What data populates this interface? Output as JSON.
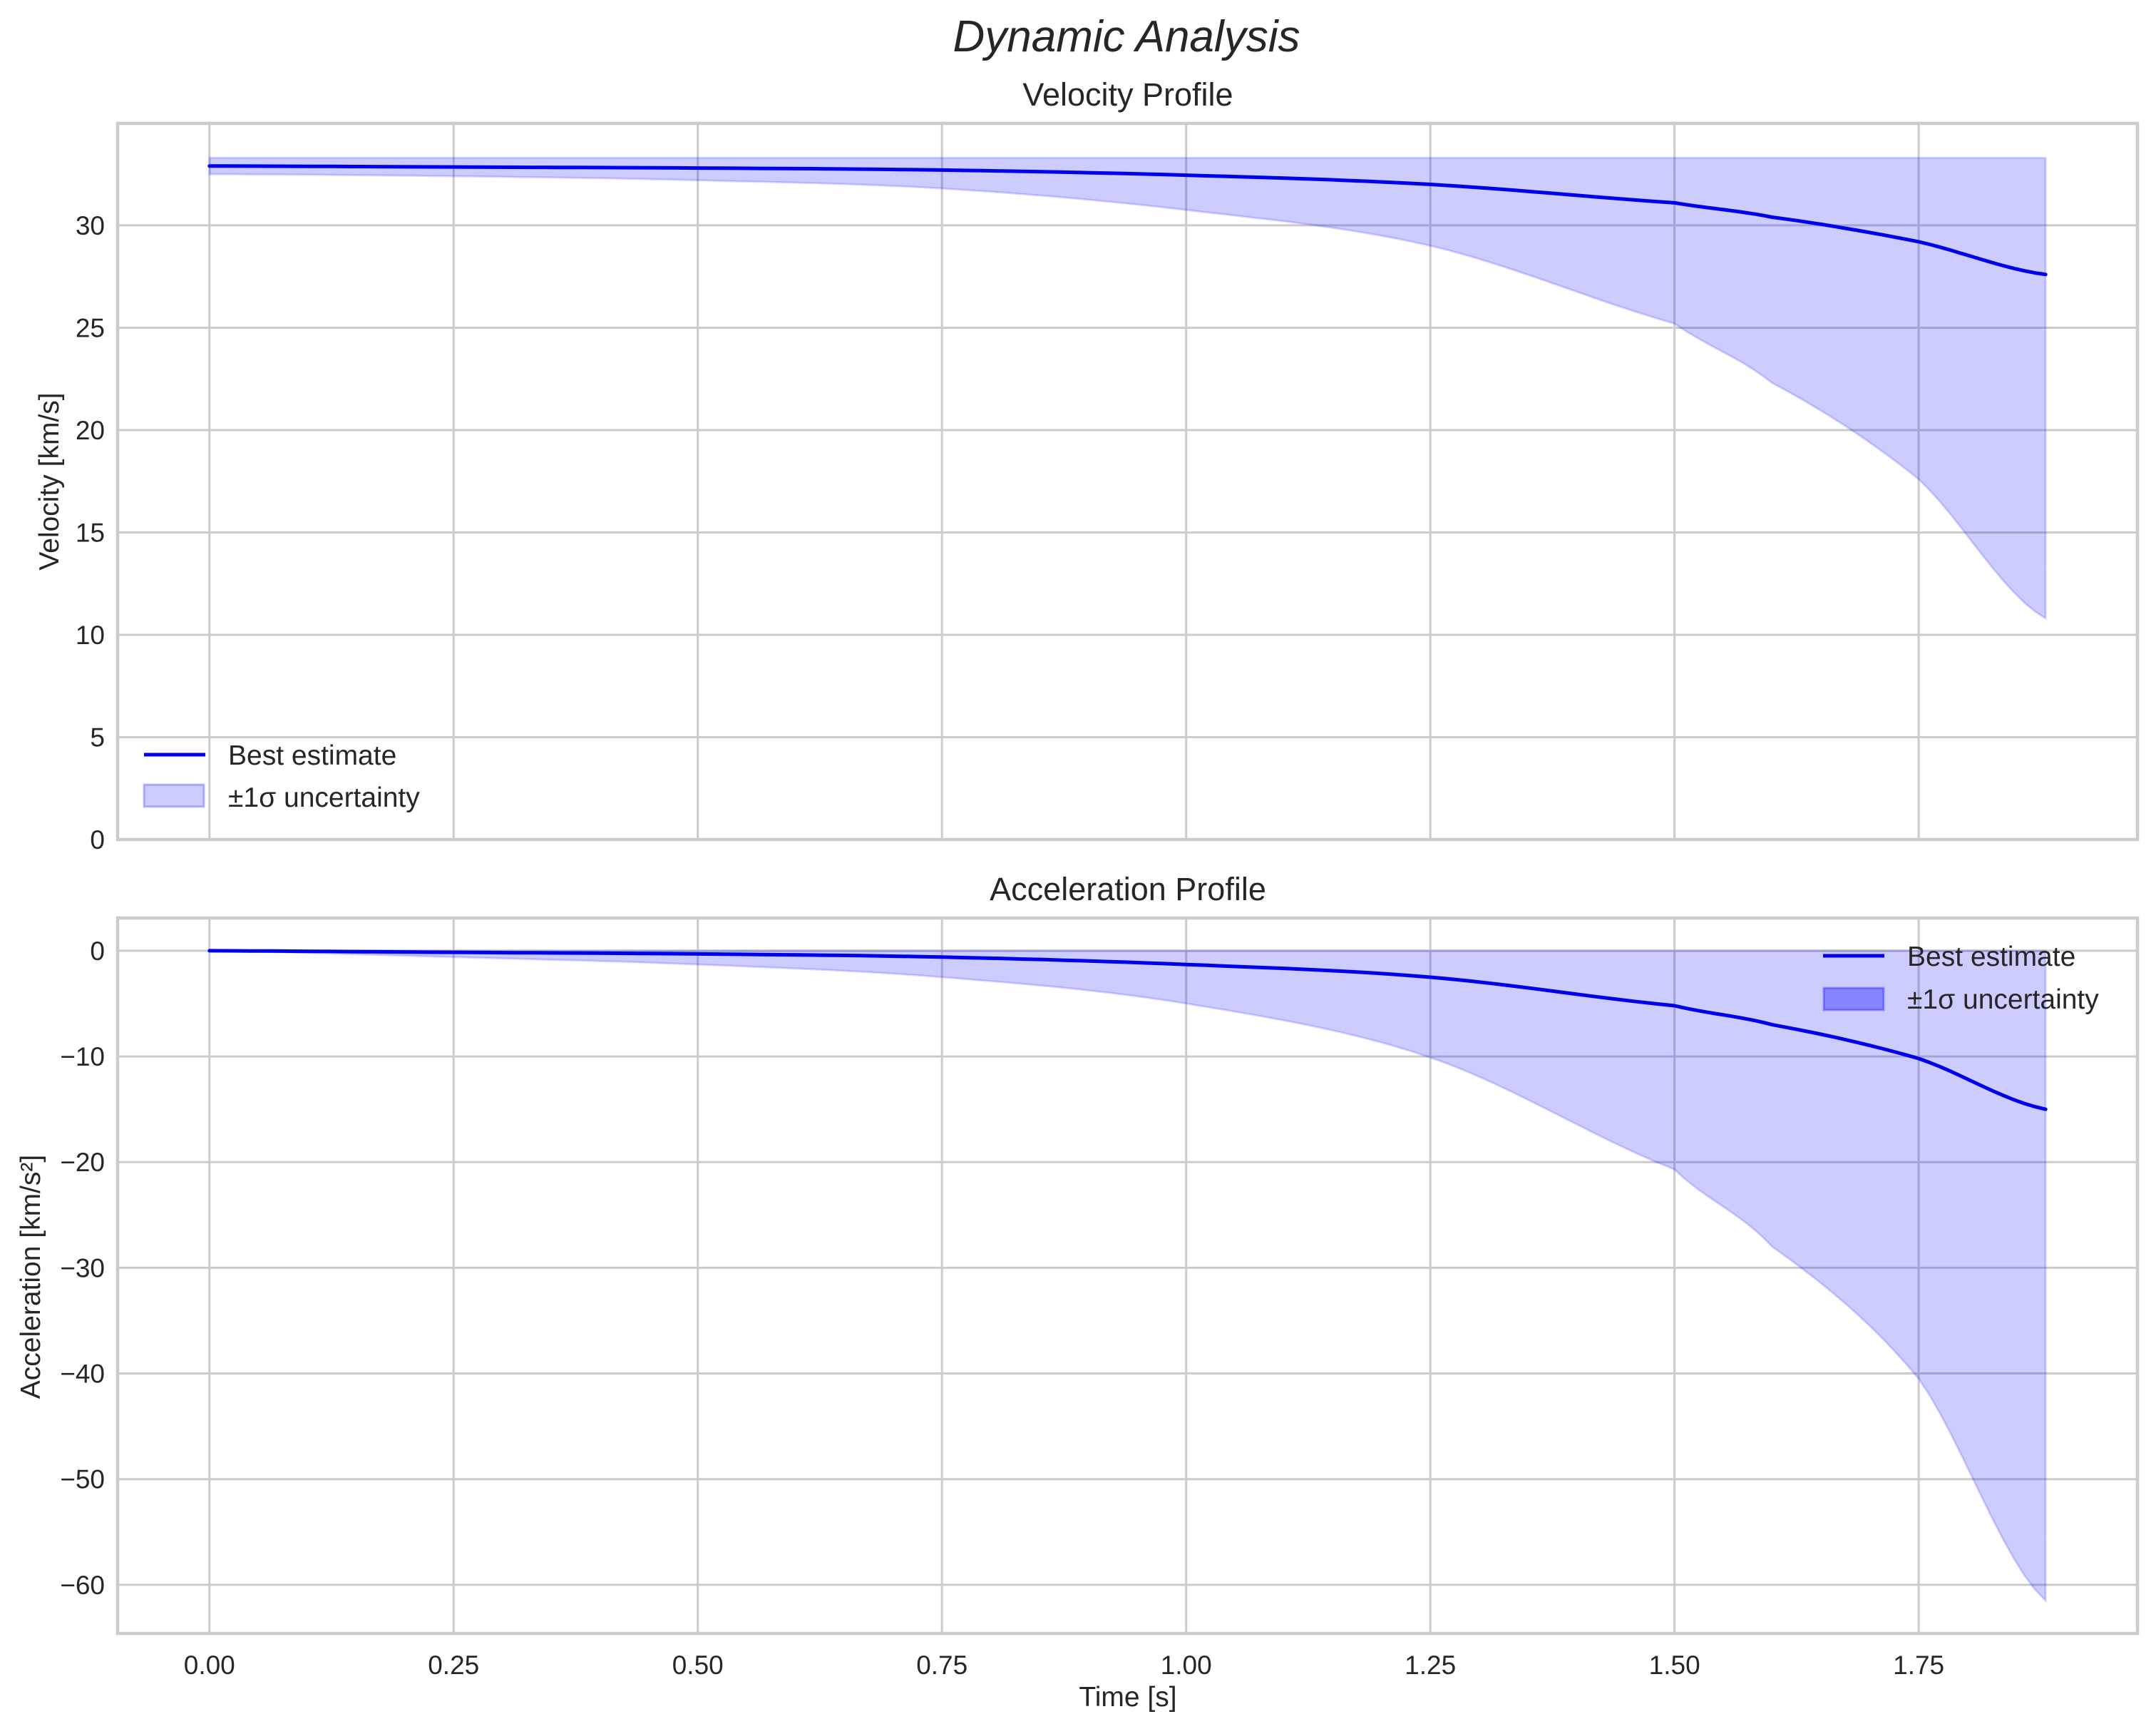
{
  "figure": {
    "title": "Dynamic Analysis"
  },
  "colors": {
    "line": "#0000ee",
    "band_fill": "#0000ff",
    "band_alpha": 0.2,
    "legend_band_alpha_acc": 0.35,
    "grid": "#cccccc",
    "text": "#262626"
  },
  "chart_data": [
    {
      "type": "line",
      "title": "Velocity Profile",
      "xlabel": "",
      "ylabel": "Velocity [km/s]",
      "xlim": [
        -0.094,
        1.974
      ],
      "ylim": [
        0,
        34.98
      ],
      "xticks": [
        0.0,
        0.25,
        0.5,
        0.75,
        1.0,
        1.25,
        1.5,
        1.75
      ],
      "xtick_labels": [
        "",
        "",
        "",
        "",
        "",
        "",
        "",
        ""
      ],
      "yticks": [
        0,
        5,
        10,
        15,
        20,
        25,
        30
      ],
      "ytick_labels": [
        "0",
        "5",
        "10",
        "15",
        "20",
        "25",
        "30"
      ],
      "grid": true,
      "legend": {
        "position": "lower left",
        "entries": [
          "Best estimate",
          "±1σ uncertainty"
        ]
      },
      "x": [
        0.0,
        0.25,
        0.5,
        0.75,
        1.0,
        1.25,
        1.5,
        1.6,
        1.75,
        1.88
      ],
      "series": [
        {
          "name": "Best estimate",
          "values": [
            32.9,
            32.85,
            32.8,
            32.7,
            32.45,
            32.0,
            31.1,
            30.4,
            29.2,
            27.6
          ]
        },
        {
          "name": "±1σ uncertainty (upper)",
          "values": [
            33.3,
            33.3,
            33.3,
            33.3,
            33.3,
            33.3,
            33.3,
            33.3,
            33.3,
            33.3
          ]
        },
        {
          "name": "±1σ uncertainty (lower)",
          "values": [
            32.5,
            32.4,
            32.2,
            31.8,
            30.75,
            29.0,
            25.2,
            22.3,
            17.6,
            10.8
          ]
        }
      ]
    },
    {
      "type": "line",
      "title": "Acceleration Profile",
      "xlabel": "Time [s]",
      "ylabel": "Acceleration [km/s²]",
      "xlim": [
        -0.094,
        1.974
      ],
      "ylim": [
        -64.6,
        3.1
      ],
      "xticks": [
        0.0,
        0.25,
        0.5,
        0.75,
        1.0,
        1.25,
        1.5,
        1.75
      ],
      "xtick_labels": [
        "0.00",
        "0.25",
        "0.50",
        "0.75",
        "1.00",
        "1.25",
        "1.50",
        "1.75"
      ],
      "yticks": [
        0,
        -10,
        -20,
        -30,
        -40,
        -50,
        -60
      ],
      "ytick_labels": [
        "0",
        "−10",
        "−20",
        "−30",
        "−40",
        "−50",
        "−60"
      ],
      "grid": true,
      "legend": {
        "position": "upper right",
        "entries": [
          "Best estimate",
          "±1σ uncertainty"
        ]
      },
      "x": [
        0.0,
        0.25,
        0.5,
        0.75,
        1.0,
        1.25,
        1.5,
        1.6,
        1.75,
        1.88
      ],
      "series": [
        {
          "name": "Best estimate",
          "values": [
            0.0,
            -0.15,
            -0.3,
            -0.6,
            -1.3,
            -2.5,
            -5.2,
            -7.0,
            -10.2,
            -15.0
          ]
        },
        {
          "name": "±1σ uncertainty (upper)",
          "values": [
            0.0,
            0.0,
            0.0,
            0.0,
            0.0,
            0.0,
            0.0,
            0.0,
            0.0,
            0.0
          ]
        },
        {
          "name": "±1σ uncertainty (lower)",
          "values": [
            0.0,
            -0.6,
            -1.3,
            -2.5,
            -5.0,
            -10.1,
            -20.7,
            -28.0,
            -40.5,
            -61.5
          ]
        }
      ]
    }
  ]
}
